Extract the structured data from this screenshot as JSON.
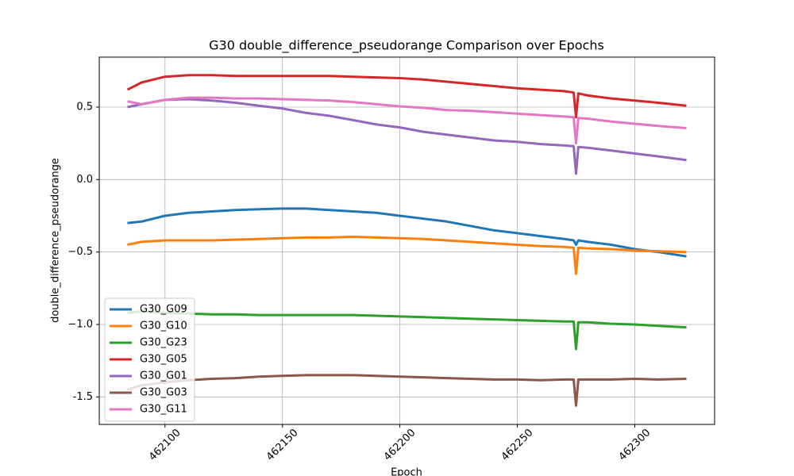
{
  "chart_data": {
    "type": "line",
    "title": "G30 double_difference_pseudorange Comparison over Epochs",
    "x_label": "Epoch",
    "y_label": "double_difference_pseudorange",
    "x": [
      462084,
      462090,
      462100,
      462110,
      462120,
      462130,
      462140,
      462150,
      462160,
      462170,
      462180,
      462190,
      462200,
      462210,
      462220,
      462230,
      462240,
      462250,
      462260,
      462270,
      462274,
      462275,
      462276,
      462280,
      462290,
      462300,
      462310,
      462322
    ],
    "series": [
      {
        "name": "G30_G09",
        "color": "#1f77b4",
        "values": [
          -0.3,
          -0.29,
          -0.25,
          -0.23,
          -0.22,
          -0.21,
          -0.205,
          -0.2,
          -0.2,
          -0.21,
          -0.22,
          -0.23,
          -0.25,
          -0.27,
          -0.29,
          -0.32,
          -0.35,
          -0.37,
          -0.39,
          -0.41,
          -0.42,
          -0.45,
          -0.42,
          -0.43,
          -0.45,
          -0.48,
          -0.5,
          -0.53
        ]
      },
      {
        "name": "G30_G10",
        "color": "#ff7f0e",
        "values": [
          -0.45,
          -0.43,
          -0.42,
          -0.42,
          -0.42,
          -0.415,
          -0.41,
          -0.405,
          -0.4,
          -0.4,
          -0.395,
          -0.4,
          -0.405,
          -0.41,
          -0.42,
          -0.43,
          -0.44,
          -0.45,
          -0.46,
          -0.465,
          -0.47,
          -0.65,
          -0.47,
          -0.475,
          -0.48,
          -0.49,
          -0.495,
          -0.5
        ]
      },
      {
        "name": "G30_G23",
        "color": "#2ca02c",
        "values": [
          -0.92,
          -0.91,
          -0.92,
          -0.925,
          -0.93,
          -0.93,
          -0.935,
          -0.935,
          -0.935,
          -0.935,
          -0.935,
          -0.94,
          -0.945,
          -0.95,
          -0.955,
          -0.96,
          -0.965,
          -0.97,
          -0.975,
          -0.98,
          -0.98,
          -1.17,
          -0.985,
          -0.985,
          -0.995,
          -1.0,
          -1.01,
          -1.02
        ]
      },
      {
        "name": "G30_G05",
        "color": "#d62728",
        "values": [
          0.62,
          0.67,
          0.71,
          0.72,
          0.72,
          0.715,
          0.715,
          0.715,
          0.715,
          0.715,
          0.71,
          0.705,
          0.7,
          0.69,
          0.675,
          0.66,
          0.645,
          0.63,
          0.62,
          0.61,
          0.6,
          0.43,
          0.595,
          0.58,
          0.56,
          0.545,
          0.53,
          0.51
        ]
      },
      {
        "name": "G30_G01",
        "color": "#9467bd",
        "values": [
          0.5,
          0.52,
          0.55,
          0.555,
          0.545,
          0.53,
          0.51,
          0.49,
          0.46,
          0.44,
          0.41,
          0.38,
          0.36,
          0.33,
          0.31,
          0.29,
          0.27,
          0.26,
          0.245,
          0.235,
          0.23,
          0.04,
          0.225,
          0.22,
          0.2,
          0.18,
          0.16,
          0.135
        ]
      },
      {
        "name": "G30_G03",
        "color": "#8c564b",
        "values": [
          -1.45,
          -1.42,
          -1.4,
          -1.385,
          -1.375,
          -1.37,
          -1.36,
          -1.355,
          -1.35,
          -1.35,
          -1.35,
          -1.355,
          -1.36,
          -1.365,
          -1.37,
          -1.375,
          -1.38,
          -1.38,
          -1.385,
          -1.38,
          -1.38,
          -1.56,
          -1.38,
          -1.38,
          -1.38,
          -1.375,
          -1.38,
          -1.375
        ]
      },
      {
        "name": "G30_G11",
        "color": "#e377c2",
        "values": [
          0.54,
          0.52,
          0.55,
          0.565,
          0.565,
          0.56,
          0.56,
          0.555,
          0.55,
          0.545,
          0.535,
          0.52,
          0.505,
          0.495,
          0.48,
          0.475,
          0.465,
          0.455,
          0.445,
          0.435,
          0.43,
          0.25,
          0.425,
          0.42,
          0.4,
          0.385,
          0.37,
          0.355
        ]
      }
    ],
    "xlim": [
      462072,
      462334
    ],
    "xticks": [
      462100,
      462150,
      462200,
      462250,
      462300
    ],
    "ylim": [
      -1.69,
      0.845
    ],
    "yticks": [
      -1.5,
      {
        "value": -1.0,
        "label": "−1.0"
      },
      {
        "value": -0.5,
        "label": "−0.5"
      },
      {
        "value": 0.0,
        "label": "0.0"
      },
      0.5
    ],
    "grid": true,
    "legend": "lower-left"
  }
}
